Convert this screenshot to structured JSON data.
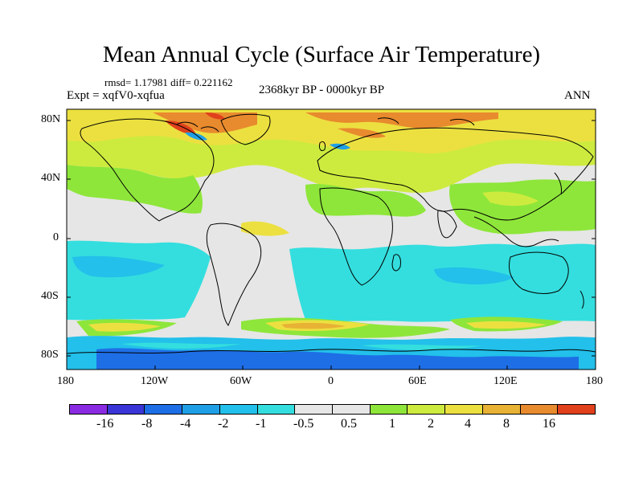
{
  "title": "Mean Annual Cycle (Surface Air Temperature)",
  "stats": "rmsd= 1.17981 diff= 0.221162",
  "experiment": "Expt = xqfV0-xqfua",
  "period": "2368kyr BP - 0000kyr BP",
  "season": "ANN",
  "lat_labels": [
    "80N",
    "40N",
    "0",
    "40S",
    "80S"
  ],
  "lon_labels": [
    "180",
    "120W",
    "60W",
    "0",
    "60E",
    "120E",
    "180"
  ],
  "legend": {
    "colors": [
      "#8a2be2",
      "#3a35d6",
      "#1e6ee6",
      "#1fa0e6",
      "#22c0ea",
      "#34dede",
      "#e6e6e6",
      "#e6e6e6",
      "#8ee63a",
      "#cdeb3e",
      "#ece040",
      "#e8b235",
      "#e88a2e",
      "#e0401c"
    ],
    "labels": [
      "-16",
      "-8",
      "-4",
      "-2",
      "-1",
      "-0.5",
      "0.5",
      "1",
      "2",
      "4",
      "8",
      "16"
    ]
  },
  "palette": {
    "neutral": "#e6e6e6",
    "green": "#8ee63a",
    "yellowgreen": "#cdeb3e",
    "yellow": "#ece040",
    "orange": "#e88a2e",
    "red": "#e0401c",
    "cyan": "#34dede",
    "lightblue": "#22c0ea",
    "blue": "#1fa0e6",
    "darkblue": "#1e6ee6"
  }
}
